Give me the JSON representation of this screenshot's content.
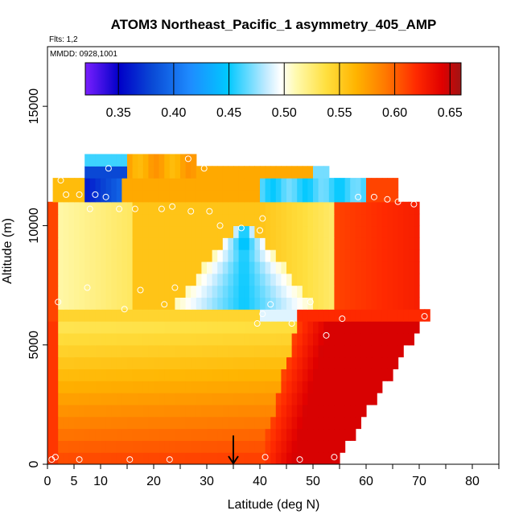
{
  "chart_data": {
    "type": "heatmap",
    "title": "ATOM3 Northeast_Pacific_1 asymmetry_405_AMP",
    "annotations": {
      "flights": "Flts: 1,2",
      "dates": "MMDD: 0928,1001"
    },
    "xlabel": "Latitude (deg N)",
    "ylabel": "Altitude (m)",
    "xlim": [
      0,
      85
    ],
    "ylim": [
      0,
      17500
    ],
    "x_ticks": [
      0,
      5,
      10,
      20,
      30,
      40,
      50,
      60,
      70,
      80
    ],
    "y_ticks": [
      0,
      5000,
      10000,
      15000
    ],
    "colorbar": {
      "range": [
        0.32,
        0.66
      ],
      "ticks": [
        0.35,
        0.4,
        0.45,
        0.5,
        0.55,
        0.6,
        0.65
      ],
      "tick_labels": [
        "0.35",
        "0.40",
        "0.45",
        "0.50",
        "0.55",
        "0.60",
        "0.65"
      ],
      "colors": [
        "#7a1fff",
        "#0000c8",
        "#0a4bd6",
        "#1e8cff",
        "#00c8ff",
        "#bfeaff",
        "#ffffff",
        "#fffab0",
        "#ffe040",
        "#ffb400",
        "#ff7800",
        "#ff2a00",
        "#e00000",
        "#a01414"
      ],
      "color_positions": [
        0.0,
        0.09,
        0.18,
        0.28,
        0.38,
        0.48,
        0.52,
        0.56,
        0.64,
        0.72,
        0.8,
        0.88,
        0.95,
        1.0
      ],
      "lines_at": [
        0.35,
        0.4,
        0.45,
        0.5,
        0.55,
        0.6,
        0.65
      ]
    },
    "lat_range": [
      0,
      72
    ],
    "alt_bin_m": 500,
    "regions": [
      {
        "name": "upper-block",
        "lat": [
          7,
          28
        ],
        "alt": [
          11500,
          13000
        ],
        "value": 0.57
      },
      {
        "name": "upper-blue",
        "lat": [
          7,
          15
        ],
        "alt": [
          11000,
          12500
        ],
        "value": 0.4
      },
      {
        "name": "upper-right-orange",
        "lat": [
          28,
          53
        ],
        "alt": [
          11500,
          12000
        ],
        "value": 0.57
      },
      {
        "name": "blue-streak",
        "lat": [
          40,
          60
        ],
        "alt": [
          11000,
          11500
        ],
        "value": 0.46
      },
      {
        "name": "mid-pale-left",
        "lat": [
          0,
          16
        ],
        "alt": [
          6500,
          11000
        ],
        "value": 0.51
      },
      {
        "name": "mid-yellow",
        "lat": [
          16,
          35
        ],
        "alt": [
          6500,
          11000
        ],
        "value": 0.55
      },
      {
        "name": "mid-triangle-blue",
        "lat": [
          24,
          54
        ],
        "alt": [
          6000,
          10500
        ],
        "value": 0.47
      },
      {
        "name": "right-red-upper",
        "lat": [
          54,
          72
        ],
        "alt": [
          6000,
          11000
        ],
        "value": 0.61
      },
      {
        "name": "lower-pale-yellow",
        "lat": [
          0,
          45
        ],
        "alt": [
          4500,
          6000
        ],
        "value": 0.53
      },
      {
        "name": "lower-gradient",
        "lat": [
          0,
          45
        ],
        "alt": [
          0,
          4500
        ],
        "value": 0.58
      },
      {
        "name": "lower-dark-red",
        "lat": [
          45,
          65
        ],
        "alt": [
          0,
          6000
        ],
        "value": 0.64
      },
      {
        "name": "left-red-column",
        "lat": [
          0,
          3
        ],
        "alt": [
          0,
          7000
        ],
        "value": 0.61
      }
    ],
    "sample_points": [
      {
        "lat": 0.8,
        "alt": 200
      },
      {
        "lat": 1.5,
        "alt": 300
      },
      {
        "lat": 6,
        "alt": 200
      },
      {
        "lat": 15.5,
        "alt": 200
      },
      {
        "lat": 23,
        "alt": 200
      },
      {
        "lat": 41,
        "alt": 300
      },
      {
        "lat": 47.5,
        "alt": 200
      },
      {
        "lat": 54,
        "alt": 300
      },
      {
        "lat": 2,
        "alt": 6800
      },
      {
        "lat": 14.5,
        "alt": 6500
      },
      {
        "lat": 22,
        "alt": 6700
      },
      {
        "lat": 39.5,
        "alt": 5900
      },
      {
        "lat": 40.5,
        "alt": 6300
      },
      {
        "lat": 42,
        "alt": 6700
      },
      {
        "lat": 46,
        "alt": 5900
      },
      {
        "lat": 49.5,
        "alt": 6800
      },
      {
        "lat": 52.5,
        "alt": 5400
      },
      {
        "lat": 55.5,
        "alt": 6100
      },
      {
        "lat": 71,
        "alt": 6200
      },
      {
        "lat": 7.5,
        "alt": 7400
      },
      {
        "lat": 17.5,
        "alt": 7300
      },
      {
        "lat": 24,
        "alt": 7400
      },
      {
        "lat": 2.5,
        "alt": 11900
      },
      {
        "lat": 3.5,
        "alt": 11300
      },
      {
        "lat": 6,
        "alt": 11300
      },
      {
        "lat": 9,
        "alt": 11300
      },
      {
        "lat": 11,
        "alt": 11200
      },
      {
        "lat": 11.5,
        "alt": 12400
      },
      {
        "lat": 26.5,
        "alt": 12800
      },
      {
        "lat": 29.5,
        "alt": 12400
      },
      {
        "lat": 8,
        "alt": 10700
      },
      {
        "lat": 13.5,
        "alt": 10700
      },
      {
        "lat": 16.5,
        "alt": 10700
      },
      {
        "lat": 21.5,
        "alt": 10700
      },
      {
        "lat": 23.5,
        "alt": 10800
      },
      {
        "lat": 27,
        "alt": 10600
      },
      {
        "lat": 30.5,
        "alt": 10600
      },
      {
        "lat": 32.5,
        "alt": 10000
      },
      {
        "lat": 36.5,
        "alt": 9900
      },
      {
        "lat": 40,
        "alt": 9800
      },
      {
        "lat": 40.5,
        "alt": 10300
      },
      {
        "lat": 58.5,
        "alt": 11200
      },
      {
        "lat": 61.5,
        "alt": 11200
      },
      {
        "lat": 64,
        "alt": 11100
      },
      {
        "lat": 66,
        "alt": 11000
      },
      {
        "lat": 69,
        "alt": 10900
      }
    ],
    "marker": {
      "lat": 35,
      "alt": 800,
      "type": "arrow-down"
    }
  }
}
